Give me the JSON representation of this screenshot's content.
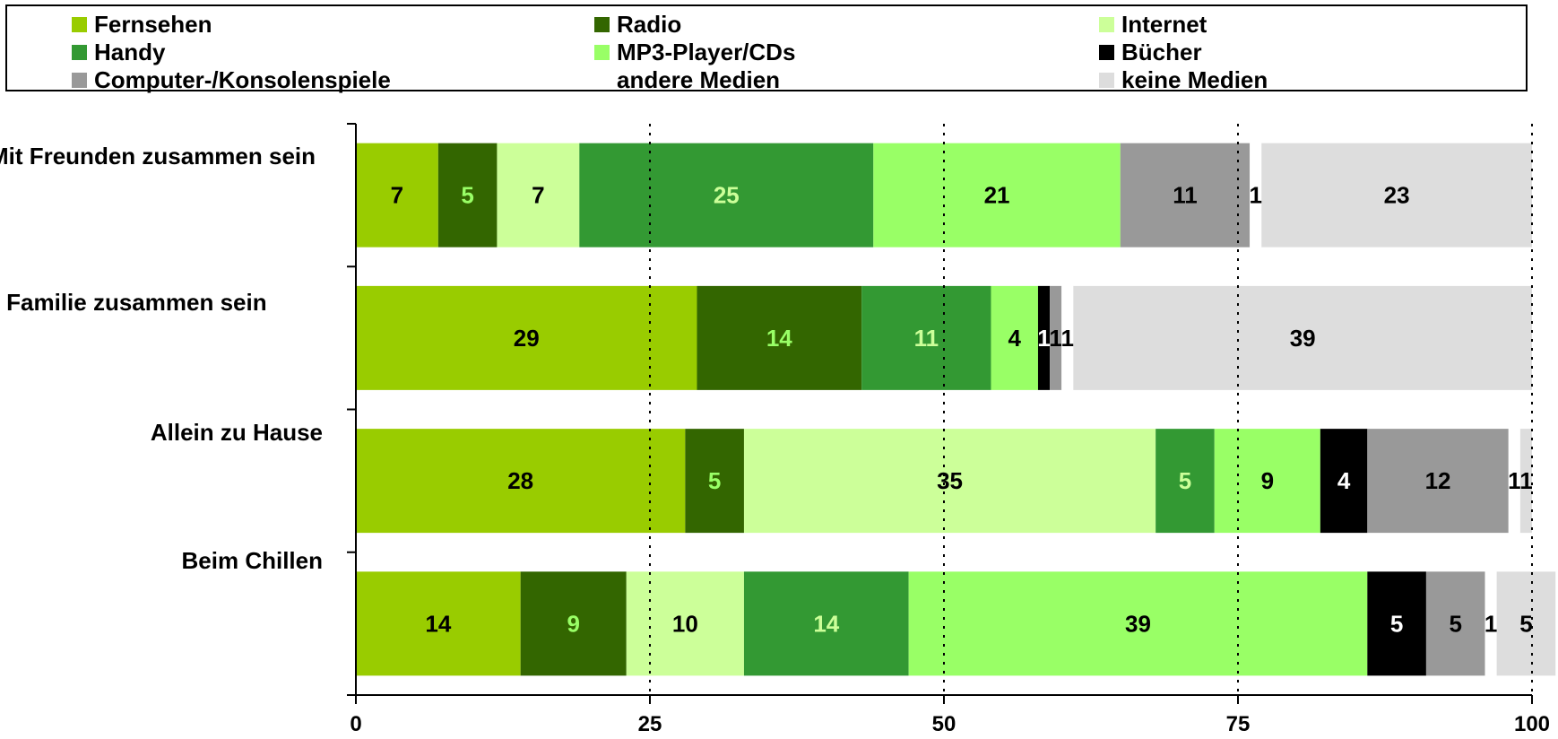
{
  "legend": {
    "items": [
      {
        "label": "Fernsehen",
        "color": "#99cc00"
      },
      {
        "label": "Radio",
        "color": "#336600"
      },
      {
        "label": "Internet",
        "color": "#ccff99"
      },
      {
        "label": "Handy",
        "color": "#339933"
      },
      {
        "label": "MP3-Player/CDs",
        "color": "#99ff66"
      },
      {
        "label": "Bücher",
        "color": "#000000"
      },
      {
        "label": "Computer-/Konsolenspiele",
        "color": "#999999"
      },
      {
        "label": "andere Medien",
        "color": ""
      },
      {
        "label": "keine Medien",
        "color": "#dddddd"
      }
    ]
  },
  "chart_data": {
    "type": "bar",
    "orientation": "horizontal",
    "stacked": true,
    "categories": [
      "Mit Freunden zusammen sein",
      "Mit Familie zusammen sein",
      "Allein zu Hause",
      "Beim Chillen"
    ],
    "series": [
      {
        "name": "Fernsehen",
        "color": "#99cc00",
        "label_color": "#000000",
        "values": [
          7,
          29,
          28,
          14
        ]
      },
      {
        "name": "Radio",
        "color": "#336600",
        "label_color": "#99ff66",
        "values": [
          5,
          14,
          5,
          9
        ]
      },
      {
        "name": "Internet",
        "color": "#ccff99",
        "label_color": "#000000",
        "values": [
          7,
          0,
          35,
          10
        ]
      },
      {
        "name": "Handy",
        "color": "#339933",
        "label_color": "#ccff99",
        "values": [
          25,
          11,
          5,
          14
        ]
      },
      {
        "name": "MP3-Player/CDs",
        "color": "#99ff66",
        "label_color": "#000000",
        "values": [
          21,
          4,
          9,
          39
        ]
      },
      {
        "name": "Bücher",
        "color": "#000000",
        "label_color": "#ffffff",
        "values": [
          0,
          1,
          4,
          5
        ]
      },
      {
        "name": "Computer-/Konsolenspiele",
        "color": "#999999",
        "label_color": "#000000",
        "values": [
          11,
          1,
          12,
          5
        ]
      },
      {
        "name": "andere Medien",
        "color": "#ffffff",
        "label_color": "#000000",
        "values": [
          1,
          1,
          1,
          1
        ]
      },
      {
        "name": "keine Medien",
        "color": "#dddddd",
        "label_color": "#000000",
        "values": [
          23,
          39,
          1,
          5
        ]
      }
    ],
    "xlim": [
      0,
      100
    ],
    "xticks": [
      0,
      25,
      50,
      75,
      100
    ],
    "grid": "vertical dotted",
    "legend_position": "top"
  }
}
